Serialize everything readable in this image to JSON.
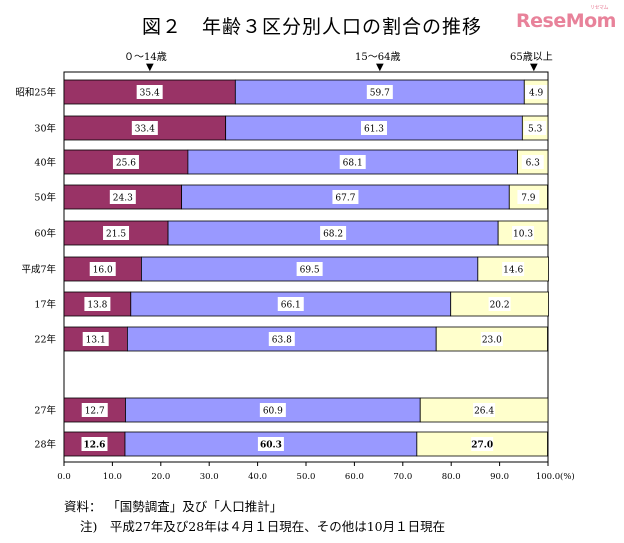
{
  "title": "図２　年齢３区分別人口の割合の推移",
  "logo": {
    "text": "ReseMom",
    "sub": "リセマム"
  },
  "group_labels": {
    "young": "０～14歳",
    "working": "15～64歳",
    "old": "65歳以上"
  },
  "footer": {
    "source_label": "資料：",
    "source_text": "「国勢調査」及び「人口推計」",
    "note_label": "注)",
    "note_text": "平成27年及び28年は４月１日現在、その他は10月１日現在"
  },
  "colors": {
    "young": "#993366",
    "working": "#9999ff",
    "old": "#ffffcc"
  },
  "chart_data": {
    "type": "bar",
    "orientation": "horizontal",
    "stacked": true,
    "categories": [
      "昭和25年",
      "30年",
      "40年",
      "50年",
      "60年",
      "平成7年",
      "17年",
      "22年",
      "27年",
      "28年"
    ],
    "series": [
      {
        "name": "０～14歳",
        "values": [
          35.4,
          33.4,
          25.6,
          24.3,
          21.5,
          16.0,
          13.8,
          13.1,
          12.7,
          12.6
        ]
      },
      {
        "name": "15～64歳",
        "values": [
          59.7,
          61.3,
          68.1,
          67.7,
          68.2,
          69.5,
          66.1,
          63.8,
          60.9,
          60.3
        ]
      },
      {
        "name": "65歳以上",
        "values": [
          4.9,
          5.3,
          6.3,
          7.9,
          10.3,
          14.6,
          20.2,
          23.0,
          26.4,
          27.0
        ]
      }
    ],
    "value_labels": [
      [
        "35.4",
        "33.4",
        "25.6",
        "24.3",
        "21.5",
        "16.0",
        "13.8",
        "13.1",
        "12.7",
        "12.6"
      ],
      [
        "59.7",
        "61.3",
        "68.1",
        "67.7",
        "68.2",
        "69.5",
        "66.1",
        "63.8",
        "60.9",
        "60.3"
      ],
      [
        "4.9",
        "5.3",
        "6.3",
        "7.9",
        "10.3",
        "14.6",
        "20.2",
        "23.0",
        "26.4",
        "27.0"
      ]
    ],
    "xlim": [
      0,
      100
    ],
    "xticks": [
      "0.0",
      "10.0",
      "20.0",
      "30.0",
      "40.0",
      "50.0",
      "60.0",
      "70.0",
      "80.0",
      "90.0",
      "100.0"
    ],
    "x_unit": "(%)",
    "bold_categories": [
      "28年"
    ]
  }
}
